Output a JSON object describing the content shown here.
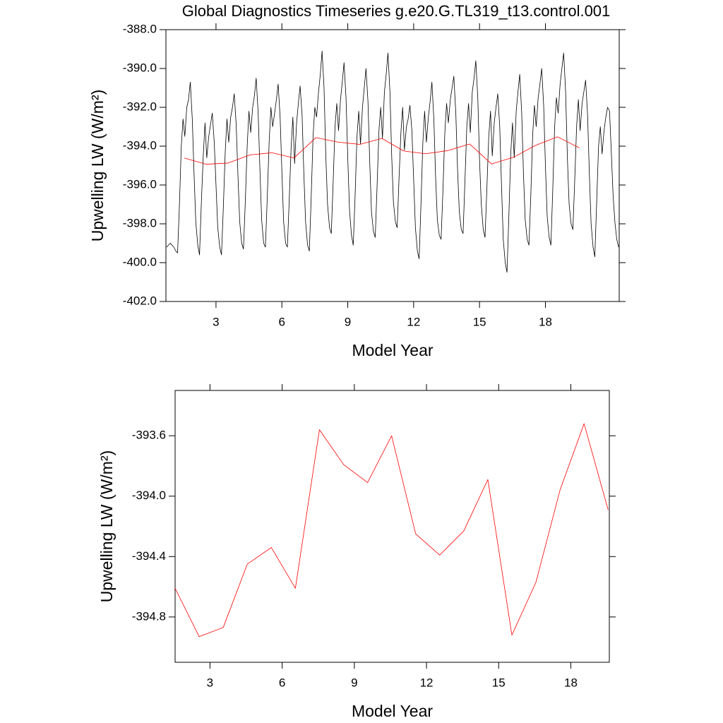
{
  "chart_data": [
    {
      "type": "line",
      "title": "Global Diagnostics Timeseries g.e20.G.TL319_t13.control.001",
      "xlabel": "Model Year",
      "ylabel": "Upwelling LW (W/m²)",
      "xlim": [
        0.72,
        21.36
      ],
      "ylim": [
        -402,
        -388
      ],
      "xticks": [
        3,
        6,
        9,
        12,
        15,
        18
      ],
      "yticks": [
        {
          "value": -388,
          "label": "-388.0"
        },
        {
          "value": -390,
          "label": "-390.0"
        },
        {
          "value": -392,
          "label": "-392.0"
        },
        {
          "value": -394,
          "label": "-394.0"
        },
        {
          "value": -396,
          "label": "-396.0"
        },
        {
          "value": -398,
          "label": "-398.0"
        },
        {
          "value": -400,
          "label": "-400.0"
        },
        {
          "value": -402,
          "label": "-402.0"
        }
      ],
      "series": [
        {
          "color": "#000000",
          "x": [
            0.75,
            0.83,
            0.92,
            1.0,
            1.08,
            1.17,
            1.25,
            1.33,
            1.42,
            1.5,
            1.58,
            1.67,
            1.75,
            1.83,
            1.92,
            2.0,
            2.08,
            2.17,
            2.25,
            2.33,
            2.42,
            2.5,
            2.58,
            2.67,
            2.75,
            2.83,
            2.92,
            3.0,
            3.08,
            3.17,
            3.25,
            3.33,
            3.42,
            3.5,
            3.58,
            3.67,
            3.75,
            3.83,
            3.92,
            4.0,
            4.08,
            4.17,
            4.25,
            4.33,
            4.42,
            4.5,
            4.58,
            4.67,
            4.75,
            4.83,
            4.92,
            5.0,
            5.08,
            5.17,
            5.25,
            5.33,
            5.42,
            5.5,
            5.58,
            5.67,
            5.75,
            5.83,
            5.92,
            6.0,
            6.08,
            6.17,
            6.25,
            6.33,
            6.42,
            6.5,
            6.58,
            6.67,
            6.75,
            6.83,
            6.92,
            7.0,
            7.08,
            7.17,
            7.25,
            7.33,
            7.42,
            7.5,
            7.58,
            7.67,
            7.75,
            7.83,
            7.92,
            8.0,
            8.08,
            8.17,
            8.25,
            8.33,
            8.42,
            8.5,
            8.58,
            8.67,
            8.75,
            8.83,
            8.92,
            9.0,
            9.08,
            9.17,
            9.25,
            9.33,
            9.42,
            9.5,
            9.58,
            9.67,
            9.75,
            9.83,
            9.92,
            10.0,
            10.08,
            10.17,
            10.25,
            10.33,
            10.42,
            10.5,
            10.58,
            10.67,
            10.75,
            10.83,
            10.92,
            11.0,
            11.08,
            11.17,
            11.25,
            11.33,
            11.42,
            11.5,
            11.58,
            11.67,
            11.75,
            11.83,
            11.92,
            12.0,
            12.08,
            12.17,
            12.25,
            12.33,
            12.42,
            12.5,
            12.58,
            12.67,
            12.75,
            12.83,
            12.92,
            13.0,
            13.08,
            13.17,
            13.25,
            13.33,
            13.42,
            13.5,
            13.58,
            13.67,
            13.75,
            13.83,
            13.92,
            14.0,
            14.08,
            14.17,
            14.25,
            14.33,
            14.42,
            14.5,
            14.58,
            14.67,
            14.75,
            14.83,
            14.92,
            15.0,
            15.08,
            15.17,
            15.25,
            15.33,
            15.42,
            15.5,
            15.58,
            15.67,
            15.75,
            15.83,
            15.92,
            16.0,
            16.08,
            16.17,
            16.25,
            16.33,
            16.42,
            16.5,
            16.58,
            16.67,
            16.75,
            16.83,
            16.92,
            17.0,
            17.08,
            17.17,
            17.25,
            17.33,
            17.42,
            17.5,
            17.58,
            17.67,
            17.75,
            17.83,
            17.92,
            18.0,
            18.08,
            18.17,
            18.25,
            18.33,
            18.42,
            18.5,
            18.58,
            18.67,
            18.75,
            18.83,
            18.92,
            19.0,
            19.08,
            19.17,
            19.25,
            19.33,
            19.42,
            19.5,
            19.58,
            19.67,
            19.75,
            19.83,
            19.92,
            20.0,
            20.08,
            20.17,
            20.25,
            20.33,
            20.42,
            20.5,
            20.58,
            20.67,
            20.75,
            20.83,
            20.92,
            21.0,
            21.08,
            21.17,
            21.25,
            21.33
          ],
          "values": [
            -399.2,
            -399.1,
            -399.0,
            -399.1,
            -399.2,
            -399.4,
            -399.5,
            -397.2,
            -394.0,
            -392.6,
            -393.5,
            -392.0,
            -391.6,
            -390.7,
            -392.6,
            -395.4,
            -397.9,
            -399.1,
            -399.6,
            -397.0,
            -394.5,
            -392.8,
            -394.6,
            -393.5,
            -392.9,
            -392.3,
            -393.8,
            -396.0,
            -398.2,
            -399.2,
            -399.6,
            -397.3,
            -394.3,
            -392.6,
            -393.8,
            -392.5,
            -392.0,
            -391.3,
            -392.9,
            -395.5,
            -397.9,
            -399.0,
            -399.3,
            -397.0,
            -394.0,
            -392.2,
            -393.3,
            -392.0,
            -391.4,
            -390.5,
            -392.3,
            -395.2,
            -397.8,
            -399.0,
            -399.2,
            -396.8,
            -393.8,
            -392.0,
            -393.0,
            -392.3,
            -391.6,
            -390.8,
            -392.5,
            -395.3,
            -397.9,
            -399.0,
            -399.2,
            -396.9,
            -394.1,
            -392.5,
            -394.9,
            -392.8,
            -391.8,
            -390.9,
            -392.4,
            -395.4,
            -397.9,
            -399.1,
            -399.4,
            -396.8,
            -393.5,
            -392.0,
            -392.5,
            -391.2,
            -390.3,
            -389.1,
            -391.0,
            -394.5,
            -397.0,
            -398.2,
            -398.5,
            -396.0,
            -393.0,
            -391.8,
            -393.2,
            -391.6,
            -390.7,
            -389.7,
            -391.5,
            -394.6,
            -397.3,
            -398.6,
            -399.1,
            -396.7,
            -393.5,
            -392.2,
            -393.9,
            -392.0,
            -391.0,
            -390.0,
            -391.7,
            -394.8,
            -397.4,
            -398.4,
            -398.7,
            -396.2,
            -393.2,
            -392.0,
            -393.6,
            -391.2,
            -390.3,
            -389.2,
            -391.2,
            -394.5,
            -396.9,
            -397.9,
            -398.2,
            -395.8,
            -393.3,
            -392.0,
            -394.2,
            -393.0,
            -392.6,
            -391.9,
            -393.2,
            -395.7,
            -398.2,
            -399.4,
            -399.8,
            -397.1,
            -393.8,
            -392.2,
            -393.8,
            -392.5,
            -391.7,
            -390.7,
            -392.6,
            -395.6,
            -397.8,
            -398.6,
            -398.8,
            -396.4,
            -393.3,
            -391.8,
            -392.8,
            -391.6,
            -391.0,
            -390.4,
            -392.3,
            -395.2,
            -397.4,
            -398.3,
            -398.5,
            -396.0,
            -393.0,
            -391.8,
            -393.3,
            -391.2,
            -390.5,
            -389.6,
            -391.5,
            -394.7,
            -397.0,
            -398.3,
            -398.7,
            -396.3,
            -393.5,
            -392.2,
            -394.5,
            -392.8,
            -392.0,
            -391.3,
            -393.0,
            -396.0,
            -398.8,
            -400.0,
            -400.5,
            -397.8,
            -394.4,
            -392.8,
            -394.6,
            -392.2,
            -391.2,
            -390.3,
            -392.3,
            -395.4,
            -397.8,
            -398.8,
            -399.1,
            -396.7,
            -393.4,
            -391.9,
            -393.0,
            -391.5,
            -390.8,
            -390.0,
            -391.9,
            -395.0,
            -397.6,
            -398.7,
            -399.1,
            -396.4,
            -393.0,
            -391.5,
            -392.3,
            -390.8,
            -390.0,
            -389.2,
            -391.2,
            -394.6,
            -397.0,
            -398.0,
            -398.3,
            -395.9,
            -393.0,
            -391.6,
            -393.2,
            -391.8,
            -391.2,
            -390.6,
            -392.4,
            -395.4,
            -398.0,
            -399.2,
            -399.7,
            -397.0,
            -394.0,
            -393.0,
            -394.4,
            -393.2,
            -392.5,
            -392.0,
            -392.2,
            -394.3,
            -396.5,
            -398.0,
            -398.8,
            -399.2
          ]
        },
        {
          "color": "#ff0000",
          "x": [
            1.55,
            2.55,
            3.55,
            4.55,
            5.55,
            6.55,
            7.55,
            8.55,
            9.55,
            10.55,
            11.55,
            12.55,
            13.55,
            14.55,
            15.55,
            16.55,
            17.55,
            18.55,
            19.55
          ],
          "values": [
            -394.61,
            -394.93,
            -394.87,
            -394.45,
            -394.34,
            -394.61,
            -393.56,
            -393.79,
            -393.91,
            -393.6,
            -394.25,
            -394.39,
            -394.23,
            -393.89,
            -394.92,
            -394.57,
            -393.96,
            -393.52,
            -394.09
          ]
        }
      ]
    },
    {
      "type": "line",
      "xlabel": "Model Year",
      "ylabel": "Upwelling LW (W/m²)",
      "xlim": [
        1.55,
        19.6
      ],
      "ylim": [
        -395.1,
        -393.3
      ],
      "xticks": [
        3,
        6,
        9,
        12,
        15,
        18
      ],
      "yticks": [
        -393.6,
        {
          "value": -394,
          "label": "-394.0"
        },
        -394.4,
        -394.8
      ],
      "series": [
        {
          "color": "#ff0000",
          "x": [
            1.55,
            2.55,
            3.55,
            4.55,
            5.55,
            6.55,
            7.55,
            8.55,
            9.55,
            10.55,
            11.55,
            12.55,
            13.55,
            14.55,
            15.55,
            16.55,
            17.55,
            18.55,
            19.55
          ],
          "values": [
            -394.61,
            -394.93,
            -394.87,
            -394.45,
            -394.34,
            -394.61,
            -393.56,
            -393.79,
            -393.91,
            -393.6,
            -394.25,
            -394.39,
            -394.23,
            -393.89,
            -394.92,
            -394.57,
            -393.96,
            -393.52,
            -394.09
          ]
        }
      ]
    }
  ]
}
